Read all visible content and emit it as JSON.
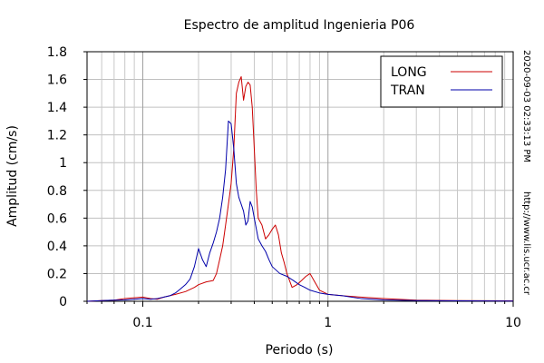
{
  "chart_data": {
    "type": "line",
    "title": "Espectro de amplitud Ingenieria P06",
    "xlabel": "Periodo (s)",
    "ylabel": "Amplitud (cm/s)",
    "xscale": "log",
    "xlim": [
      0.05,
      10
    ],
    "ylim": [
      0,
      1.8
    ],
    "grid": true,
    "legend_position": "top-right",
    "x_ticks": [
      0.1,
      1,
      10
    ],
    "x_tick_labels": [
      "0.1",
      "1",
      "10"
    ],
    "y_ticks": [
      0,
      0.2,
      0.4,
      0.6,
      0.8,
      1,
      1.2,
      1.4,
      1.6,
      1.8
    ],
    "y_tick_labels": [
      "0",
      "0.2",
      "0.4",
      "0.6",
      "0.8",
      "1",
      "1.2",
      "1.4",
      "1.6",
      "1.8"
    ],
    "series": [
      {
        "name": "LONG",
        "color": "#cc0000",
        "points": [
          [
            0.05,
            0.0
          ],
          [
            0.06,
            0.005
          ],
          [
            0.07,
            0.008
          ],
          [
            0.08,
            0.02
          ],
          [
            0.09,
            0.025
          ],
          [
            0.1,
            0.03
          ],
          [
            0.11,
            0.02
          ],
          [
            0.12,
            0.015
          ],
          [
            0.13,
            0.03
          ],
          [
            0.15,
            0.05
          ],
          [
            0.17,
            0.07
          ],
          [
            0.19,
            0.1
          ],
          [
            0.2,
            0.12
          ],
          [
            0.22,
            0.14
          ],
          [
            0.24,
            0.15
          ],
          [
            0.25,
            0.2
          ],
          [
            0.26,
            0.3
          ],
          [
            0.27,
            0.4
          ],
          [
            0.28,
            0.55
          ],
          [
            0.29,
            0.7
          ],
          [
            0.3,
            0.85
          ],
          [
            0.31,
            1.1
          ],
          [
            0.32,
            1.5
          ],
          [
            0.33,
            1.58
          ],
          [
            0.34,
            1.62
          ],
          [
            0.35,
            1.45
          ],
          [
            0.36,
            1.55
          ],
          [
            0.37,
            1.58
          ],
          [
            0.38,
            1.56
          ],
          [
            0.39,
            1.4
          ],
          [
            0.4,
            1.1
          ],
          [
            0.41,
            0.8
          ],
          [
            0.42,
            0.6
          ],
          [
            0.44,
            0.55
          ],
          [
            0.46,
            0.45
          ],
          [
            0.48,
            0.48
          ],
          [
            0.5,
            0.52
          ],
          [
            0.52,
            0.55
          ],
          [
            0.54,
            0.48
          ],
          [
            0.56,
            0.35
          ],
          [
            0.58,
            0.28
          ],
          [
            0.6,
            0.2
          ],
          [
            0.64,
            0.1
          ],
          [
            0.68,
            0.12
          ],
          [
            0.72,
            0.15
          ],
          [
            0.76,
            0.18
          ],
          [
            0.8,
            0.2
          ],
          [
            0.84,
            0.15
          ],
          [
            0.9,
            0.08
          ],
          [
            1.0,
            0.05
          ],
          [
            1.2,
            0.04
          ],
          [
            1.5,
            0.03
          ],
          [
            2.0,
            0.02
          ],
          [
            3.0,
            0.008
          ],
          [
            5.0,
            0.005
          ],
          [
            10.0,
            0.003
          ]
        ]
      },
      {
        "name": "TRAN",
        "color": "#0000aa",
        "points": [
          [
            0.05,
            0.0
          ],
          [
            0.06,
            0.005
          ],
          [
            0.07,
            0.008
          ],
          [
            0.08,
            0.01
          ],
          [
            0.09,
            0.015
          ],
          [
            0.1,
            0.02
          ],
          [
            0.11,
            0.015
          ],
          [
            0.12,
            0.02
          ],
          [
            0.13,
            0.03
          ],
          [
            0.14,
            0.04
          ],
          [
            0.15,
            0.06
          ],
          [
            0.16,
            0.09
          ],
          [
            0.17,
            0.12
          ],
          [
            0.18,
            0.16
          ],
          [
            0.19,
            0.25
          ],
          [
            0.2,
            0.38
          ],
          [
            0.21,
            0.3
          ],
          [
            0.22,
            0.25
          ],
          [
            0.23,
            0.35
          ],
          [
            0.24,
            0.42
          ],
          [
            0.25,
            0.5
          ],
          [
            0.26,
            0.6
          ],
          [
            0.27,
            0.75
          ],
          [
            0.28,
            0.95
          ],
          [
            0.29,
            1.3
          ],
          [
            0.3,
            1.28
          ],
          [
            0.31,
            1.1
          ],
          [
            0.32,
            0.85
          ],
          [
            0.33,
            0.75
          ],
          [
            0.34,
            0.7
          ],
          [
            0.35,
            0.65
          ],
          [
            0.36,
            0.55
          ],
          [
            0.37,
            0.58
          ],
          [
            0.38,
            0.72
          ],
          [
            0.39,
            0.68
          ],
          [
            0.4,
            0.6
          ],
          [
            0.42,
            0.45
          ],
          [
            0.44,
            0.4
          ],
          [
            0.46,
            0.36
          ],
          [
            0.48,
            0.3
          ],
          [
            0.5,
            0.25
          ],
          [
            0.55,
            0.2
          ],
          [
            0.6,
            0.18
          ],
          [
            0.65,
            0.15
          ],
          [
            0.7,
            0.12
          ],
          [
            0.75,
            0.1
          ],
          [
            0.8,
            0.08
          ],
          [
            0.9,
            0.06
          ],
          [
            1.0,
            0.05
          ],
          [
            1.2,
            0.04
          ],
          [
            1.5,
            0.02
          ],
          [
            2.0,
            0.01
          ],
          [
            3.0,
            0.005
          ],
          [
            5.0,
            0.003
          ],
          [
            10.0,
            0.002
          ]
        ]
      }
    ],
    "annotations": [
      "2020-09-03 02:33:13 PM",
      "http://www.lis.ucr.ac.cr"
    ]
  }
}
